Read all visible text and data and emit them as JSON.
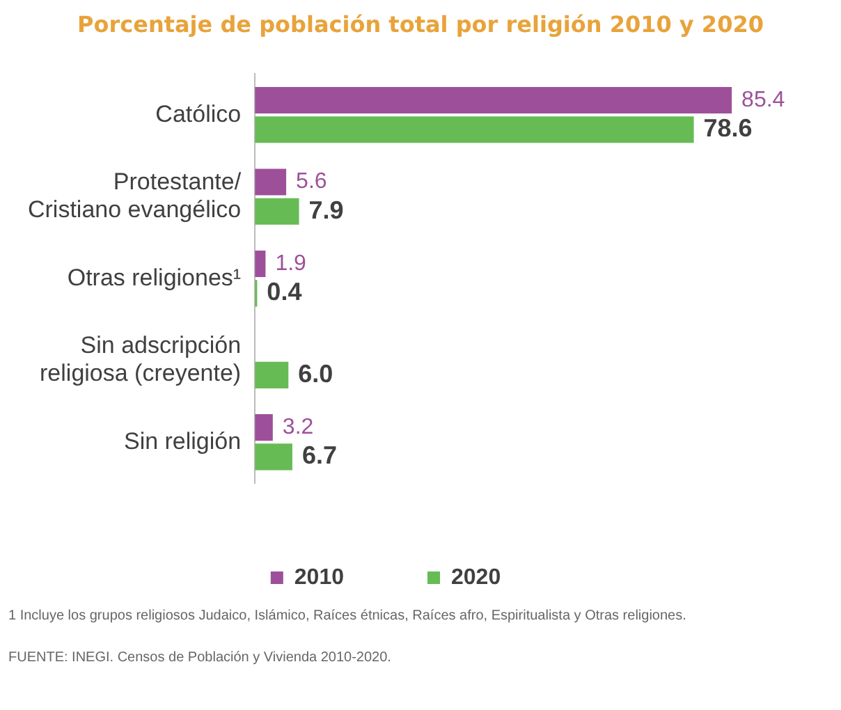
{
  "chart_data": {
    "type": "bar",
    "orientation": "horizontal",
    "title": "Porcentaje de población total por religión 2010 y 2020",
    "categories": [
      "Católico",
      "Protestante/\nCristiano evangélico",
      "Otras religiones¹",
      "Sin adscripción\nreligiosa (creyente)",
      "Sin religión"
    ],
    "series": [
      {
        "name": "2010",
        "color": "#9e4f9a",
        "values": [
          85.4,
          5.6,
          1.9,
          null,
          3.2
        ],
        "value_labels": [
          "85.4",
          "5.6",
          "1.9",
          null,
          "3.2"
        ]
      },
      {
        "name": "2020",
        "color": "#66bb55",
        "values": [
          78.6,
          7.9,
          0.4,
          6.0,
          6.7
        ],
        "value_labels": [
          "78.6",
          "7.9",
          "0.4",
          "6.0",
          "6.7"
        ]
      }
    ],
    "legend": "bottom",
    "annotations": [
      "1 Incluye los grupos religiosos Judaico, Islámico, Raíces étnicas, Raíces afro, Espiritualista y Otras religiones.",
      "FUENTE: INEGI. Censos de Población y Vivienda 2010-2020."
    ]
  }
}
